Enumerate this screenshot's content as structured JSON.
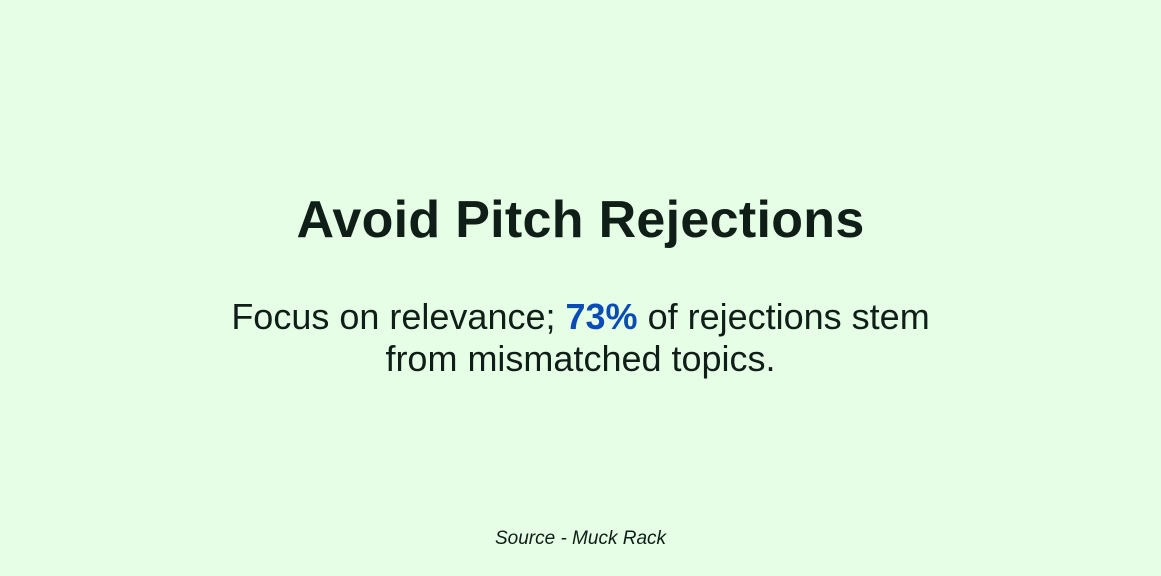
{
  "title": "Avoid Pitch Rejections",
  "subtitle": {
    "before": "Focus on relevance; ",
    "highlight": "73%",
    "after_line1": " of rejections stem",
    "line2": "from mismatched topics."
  },
  "source": "Source - Muck Rack",
  "colors": {
    "background": "#e6fde6",
    "text": "#0f1f17",
    "highlight": "#0a4bb8"
  }
}
